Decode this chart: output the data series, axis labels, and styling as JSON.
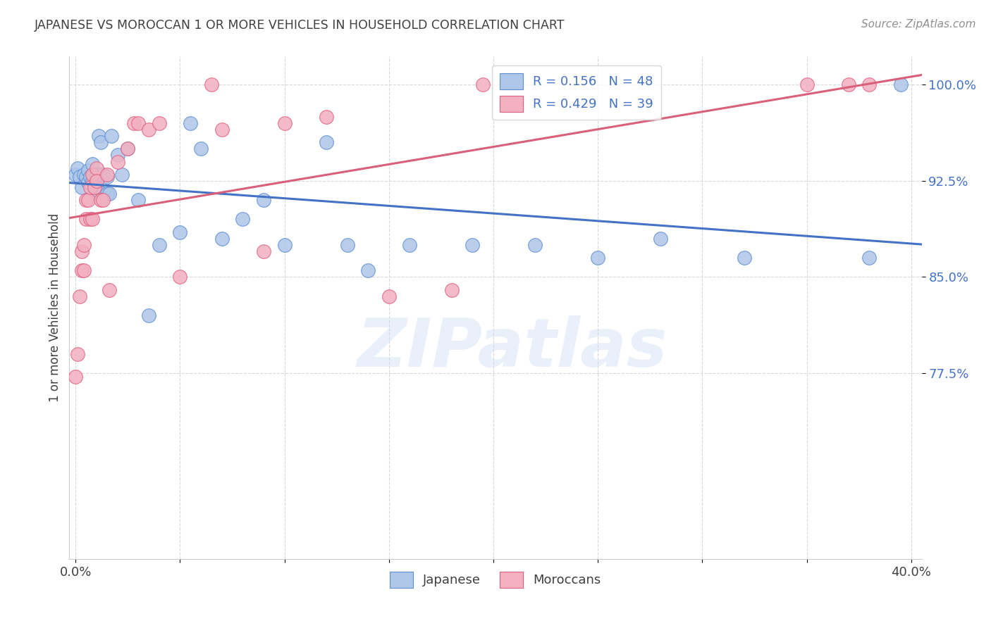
{
  "title": "JAPANESE VS MOROCCAN 1 OR MORE VEHICLES IN HOUSEHOLD CORRELATION CHART",
  "source": "Source: ZipAtlas.com",
  "ylabel": "1 or more Vehicles in Household",
  "ylim": [
    0.63,
    1.022
  ],
  "xlim": [
    -0.003,
    0.405
  ],
  "yticks": [
    0.775,
    0.85,
    0.925,
    1.0
  ],
  "ytick_labels": [
    "77.5%",
    "85.0%",
    "92.5%",
    "100.0%"
  ],
  "watermark": "ZIPatlas",
  "legend_japanese_R": "R = 0.156",
  "legend_japanese_N": "N = 48",
  "legend_moroccan_R": "R = 0.429",
  "legend_moroccan_N": "N = 39",
  "japanese_color": "#aec6e8",
  "moroccan_color": "#f2b0c0",
  "japanese_edge_color": "#5b8fd4",
  "moroccan_edge_color": "#e06080",
  "japanese_line_color": "#4472c4",
  "moroccan_line_color": "#d9607a",
  "legend_text_color_R": "#404040",
  "legend_text_color_N": "#4472c4",
  "title_color": "#404040",
  "source_color": "#909090",
  "ylabel_color": "#404040",
  "ytick_color": "#4472c4",
  "background_color": "#ffffff",
  "grid_color": "#d8d8d8",
  "japanese_x": [
    0.0,
    0.001,
    0.002,
    0.003,
    0.004,
    0.005,
    0.006,
    0.006,
    0.007,
    0.008,
    0.008,
    0.009,
    0.009,
    0.01,
    0.01,
    0.011,
    0.012,
    0.012,
    0.013,
    0.013,
    0.015,
    0.015,
    0.016,
    0.017,
    0.02,
    0.022,
    0.025,
    0.03,
    0.035,
    0.04,
    0.05,
    0.055,
    0.06,
    0.07,
    0.08,
    0.09,
    0.1,
    0.12,
    0.13,
    0.14,
    0.16,
    0.19,
    0.22,
    0.25,
    0.28,
    0.32,
    0.38,
    0.395
  ],
  "japanese_y": [
    0.93,
    0.935,
    0.928,
    0.92,
    0.93,
    0.928,
    0.924,
    0.933,
    0.928,
    0.925,
    0.938,
    0.93,
    0.915,
    0.92,
    0.93,
    0.96,
    0.955,
    0.93,
    0.93,
    0.915,
    0.928,
    0.915,
    0.915,
    0.96,
    0.945,
    0.93,
    0.95,
    0.91,
    0.82,
    0.875,
    0.885,
    0.97,
    0.95,
    0.88,
    0.895,
    0.91,
    0.875,
    0.955,
    0.875,
    0.855,
    0.875,
    0.875,
    0.875,
    0.865,
    0.88,
    0.865,
    0.865,
    1.0
  ],
  "moroccan_x": [
    0.0,
    0.001,
    0.002,
    0.003,
    0.003,
    0.004,
    0.004,
    0.005,
    0.005,
    0.006,
    0.007,
    0.007,
    0.008,
    0.008,
    0.009,
    0.01,
    0.01,
    0.012,
    0.013,
    0.015,
    0.016,
    0.02,
    0.025,
    0.028,
    0.03,
    0.035,
    0.04,
    0.05,
    0.065,
    0.07,
    0.09,
    0.1,
    0.12,
    0.15,
    0.18,
    0.195,
    0.35,
    0.37,
    0.38
  ],
  "moroccan_y": [
    0.772,
    0.79,
    0.835,
    0.855,
    0.87,
    0.855,
    0.875,
    0.895,
    0.91,
    0.91,
    0.895,
    0.92,
    0.895,
    0.93,
    0.92,
    0.935,
    0.925,
    0.91,
    0.91,
    0.93,
    0.84,
    0.94,
    0.95,
    0.97,
    0.97,
    0.965,
    0.97,
    0.85,
    1.0,
    0.965,
    0.87,
    0.97,
    0.975,
    0.835,
    0.84,
    1.0,
    1.0,
    1.0,
    1.0
  ]
}
